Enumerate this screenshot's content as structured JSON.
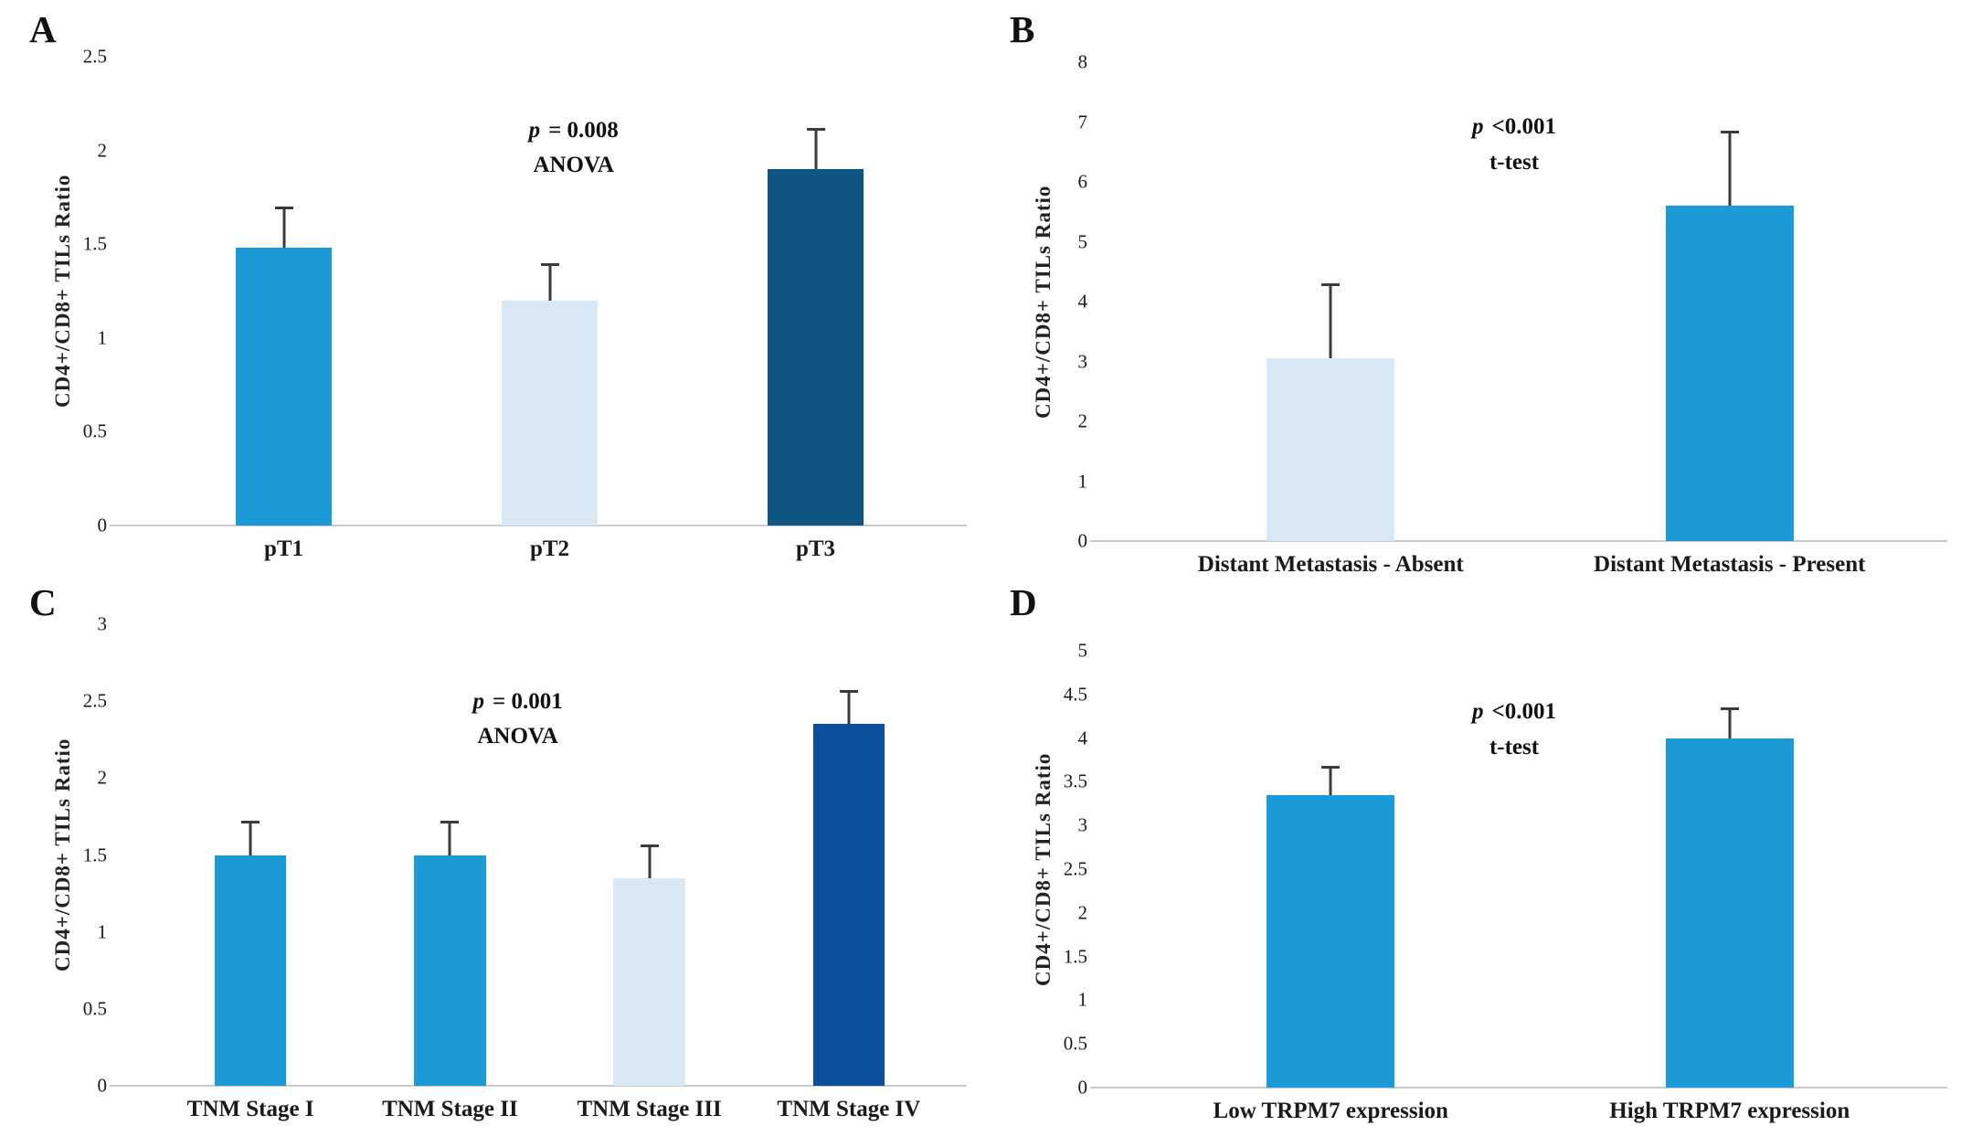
{
  "colors": {
    "medium_blue": "#1B9AD7",
    "light_blue": "#D9E8F5",
    "dark_teal_blue": "#0F5581",
    "dark_royal_blue": "#0C509B",
    "error_bar": "#3B3B3B",
    "axis_line": "#CACACA",
    "text": "#1A1A1A",
    "background": "#FFFFFF"
  },
  "chart_data": [
    {
      "type": "bar",
      "panel_label": "A",
      "title": "",
      "ylabel": "CD4+/CD8+ TILs Ratio",
      "xlabel": "",
      "annotation": {
        "p_symbol": "p",
        "p_value": "= 0.008",
        "test": "ANOVA"
      },
      "ylim": [
        0,
        2.5
      ],
      "yticks": [
        0,
        0.5,
        1,
        1.5,
        2,
        2.5
      ],
      "ytick_labels": [
        "0",
        "0.5",
        "1",
        "1.5",
        "2",
        "2.5"
      ],
      "categories": [
        "pT1",
        "pT2",
        "pT3"
      ],
      "values": [
        1.48,
        1.2,
        1.9
      ],
      "error_tops": [
        1.7,
        1.4,
        2.12
      ],
      "bar_colors": [
        "medium_blue",
        "light_blue",
        "dark_teal_blue"
      ],
      "grid": false,
      "legend": false
    },
    {
      "type": "bar",
      "panel_label": "B",
      "title": "",
      "ylabel": "CD4+/CD8+ TILs Ratio",
      "xlabel": "",
      "annotation": {
        "p_symbol": "p",
        "p_value": "<0.001",
        "test": "t-test"
      },
      "ylim": [
        0,
        8
      ],
      "yticks": [
        0,
        1,
        2,
        3,
        4,
        5,
        6,
        7,
        8
      ],
      "ytick_labels": [
        "0",
        "1",
        "2",
        "3",
        "4",
        "5",
        "6",
        "7",
        "8"
      ],
      "categories": [
        "Distant Metastasis - Absent",
        "Distant Metastasis - Present"
      ],
      "values": [
        3.05,
        5.6
      ],
      "error_tops": [
        4.3,
        6.85
      ],
      "bar_colors": [
        "light_blue",
        "medium_blue"
      ],
      "grid": false,
      "legend": false
    },
    {
      "type": "bar",
      "panel_label": "C",
      "title": "",
      "ylabel": "CD4+/CD8+ TILs Ratio",
      "xlabel": "",
      "annotation": {
        "p_symbol": "p",
        "p_value": "= 0.001",
        "test": "ANOVA"
      },
      "ylim": [
        0,
        3
      ],
      "yticks": [
        0,
        0.5,
        1,
        1.5,
        2,
        2.5,
        3
      ],
      "ytick_labels": [
        "0",
        "0.5",
        "1",
        "1.5",
        "2",
        "2.5",
        "3"
      ],
      "categories": [
        "TNM Stage I",
        "TNM Stage II",
        "TNM Stage III",
        "TNM Stage IV"
      ],
      "values": [
        1.5,
        1.5,
        1.35,
        2.35
      ],
      "error_tops": [
        1.72,
        1.72,
        1.57,
        2.57
      ],
      "bar_colors": [
        "medium_blue",
        "medium_blue",
        "light_blue",
        "dark_royal_blue"
      ],
      "grid": false,
      "legend": false
    },
    {
      "type": "bar",
      "panel_label": "D",
      "title": "",
      "ylabel": "CD4+/CD8+ TILs Ratio",
      "xlabel": "",
      "annotation": {
        "p_symbol": "p",
        "p_value": "<0.001",
        "test": "t-test"
      },
      "ylim": [
        0,
        5
      ],
      "yticks": [
        0,
        0.5,
        1,
        1.5,
        2,
        2.5,
        3,
        3.5,
        4,
        4.5,
        5
      ],
      "ytick_labels": [
        "0",
        "0.5",
        "1",
        "1.5",
        "2",
        "2.5",
        "3",
        "3.5",
        "4",
        "4.5",
        "5"
      ],
      "categories": [
        "Low TRPM7 expression",
        "High TRPM7 expression"
      ],
      "values": [
        3.35,
        4.0
      ],
      "error_tops": [
        3.68,
        4.35
      ],
      "bar_colors": [
        "medium_blue",
        "medium_blue"
      ],
      "grid": false,
      "legend": false
    }
  ]
}
